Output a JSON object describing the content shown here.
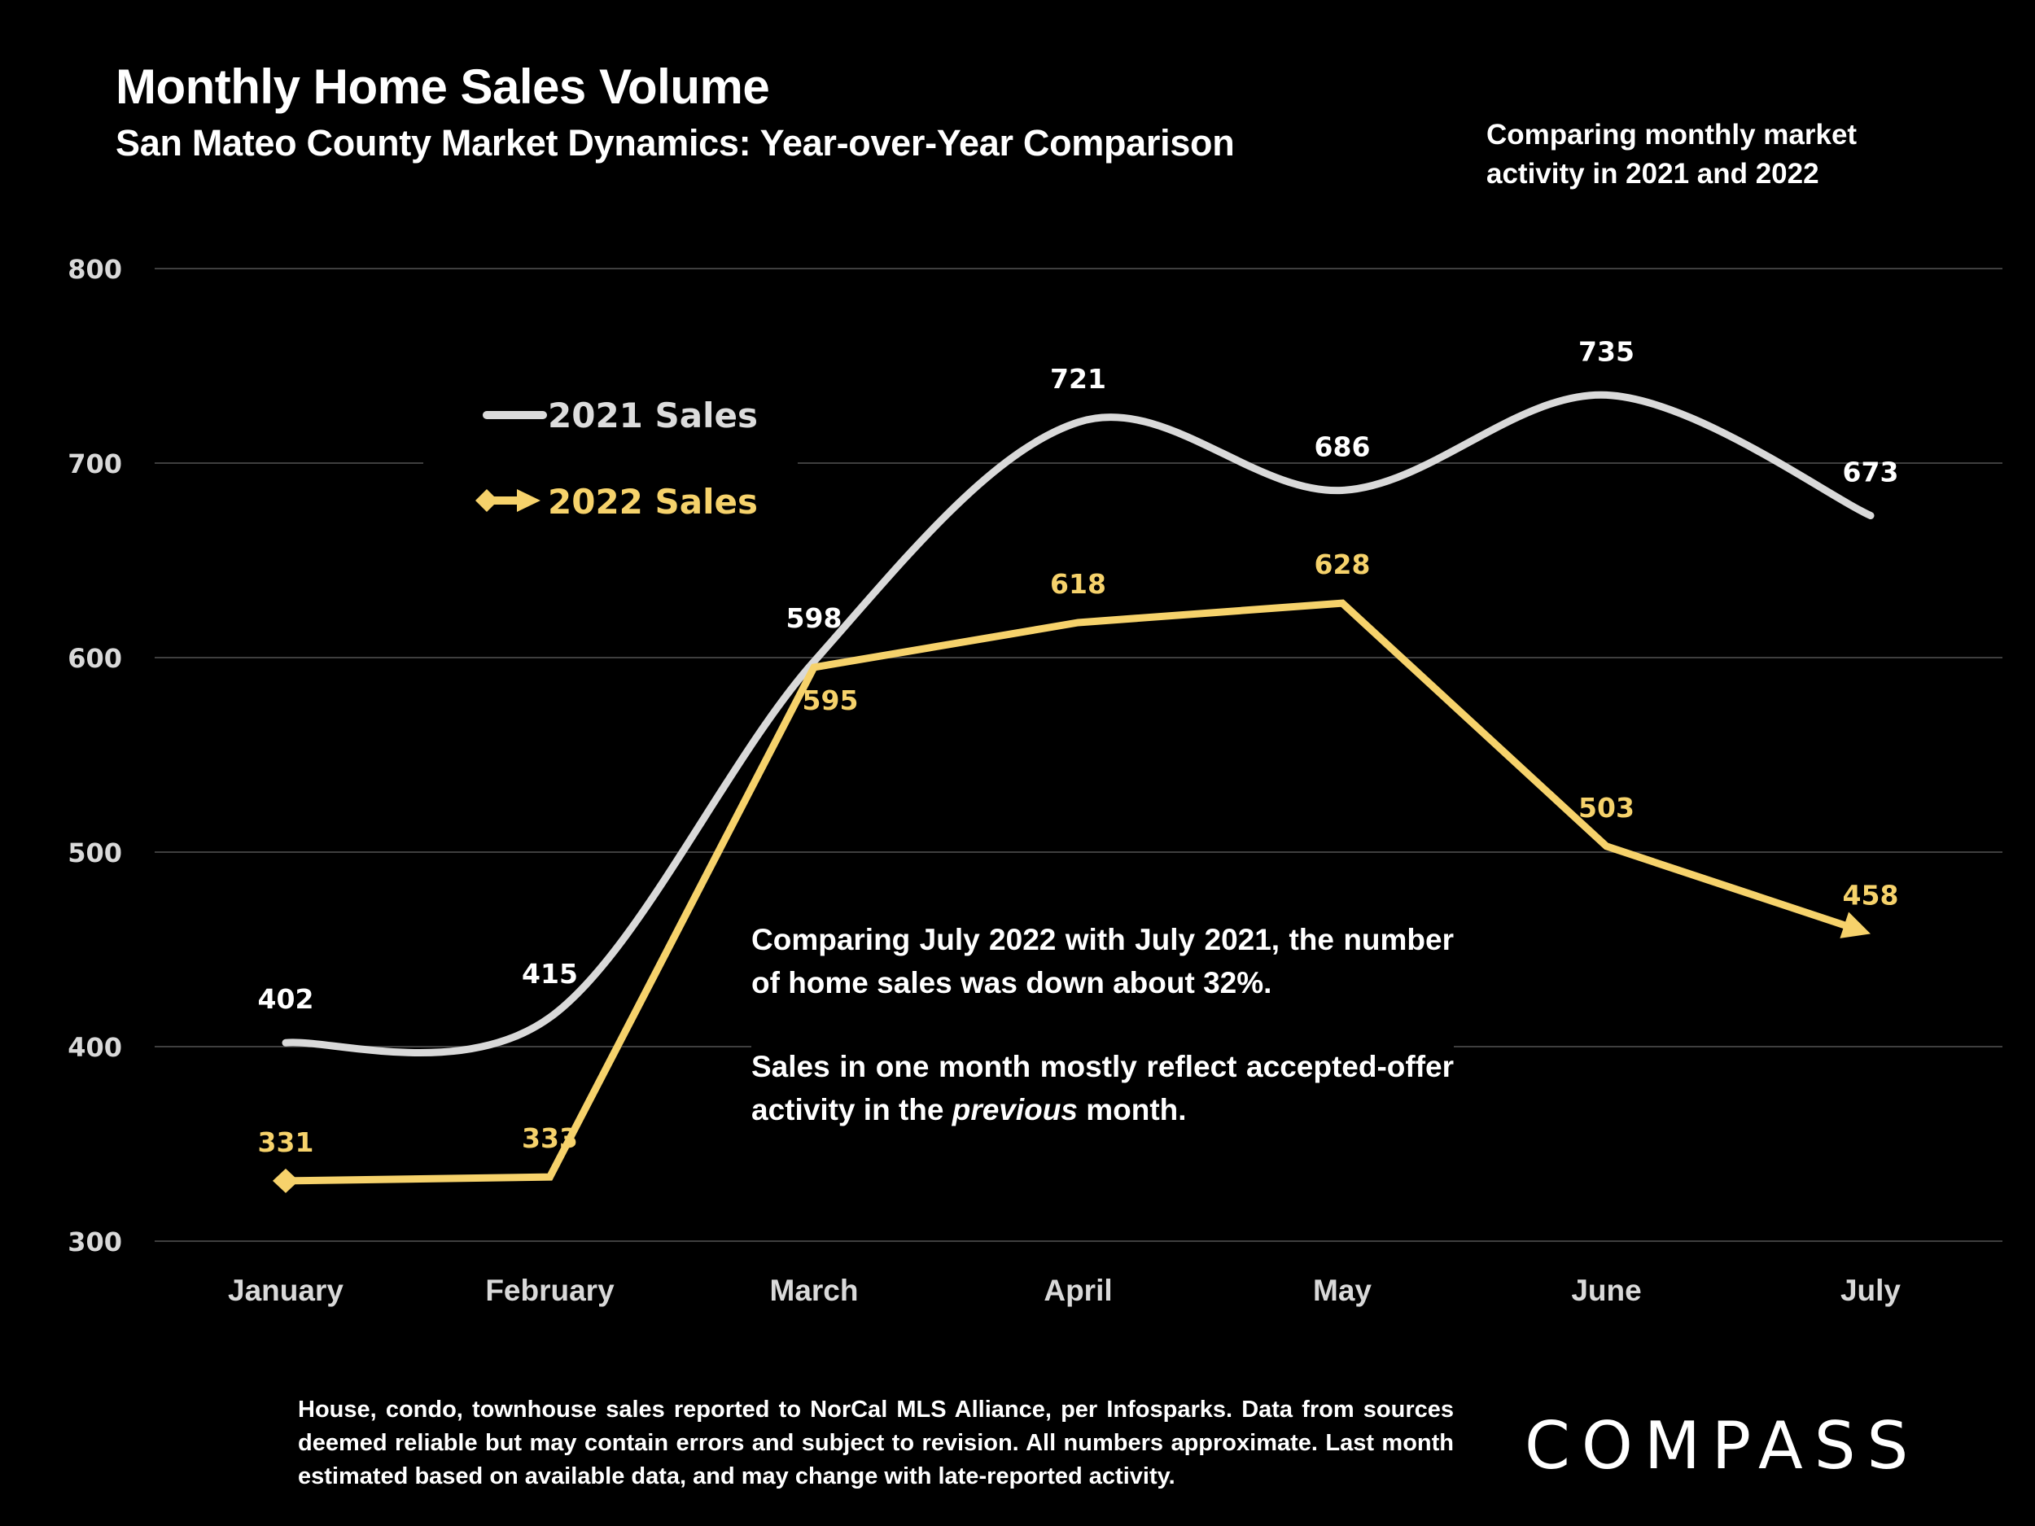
{
  "header": {
    "title": "Monthly Home Sales Volume",
    "subtitle": "San Mateo County Market Dynamics: Year-over-Year Comparison",
    "note": "Comparing monthly market activity in 2021 and 2022"
  },
  "annotation": {
    "paragraph1": "Comparing July 2022 with July 2021, the number of home sales was down about 32%.",
    "paragraph2_before": "Sales in one month mostly reflect accepted-offer activity in the ",
    "paragraph2_italic": "previous",
    "paragraph2_after": " month."
  },
  "footer": {
    "disclaimer": "House, condo, townhouse sales reported to NorCal MLS Alliance, per Infosparks. Data from sources deemed reliable but may contain errors and subject to revision. All numbers approximate. Last month estimated based on available data, and may change with late-reported activity."
  },
  "brand": {
    "logo_text": "COMPASS"
  },
  "colors": {
    "background": "#000000",
    "series_2021": "#d9d9d9",
    "series_2022": "#f6d26b",
    "gridline": "#3f3f3f"
  },
  "chart_data": {
    "type": "line",
    "title": "Monthly Home Sales Volume",
    "subtitle": "San Mateo County Market Dynamics: Year-over-Year Comparison",
    "xlabel": "",
    "ylabel": "",
    "categories": [
      "January",
      "February",
      "March",
      "April",
      "May",
      "June",
      "July"
    ],
    "ylim": [
      300,
      800
    ],
    "yticks": [
      300,
      400,
      500,
      600,
      700,
      800
    ],
    "grid": true,
    "legend_position": "top-left",
    "series": [
      {
        "name": "2021 Sales",
        "values": [
          402,
          415,
          598,
          721,
          686,
          735,
          673
        ],
        "smooth": true,
        "marker": "none"
      },
      {
        "name": "2022 Sales",
        "values": [
          331,
          333,
          595,
          618,
          628,
          503,
          458
        ],
        "smooth": false,
        "marker": "diamond-start-arrow-end"
      }
    ]
  }
}
